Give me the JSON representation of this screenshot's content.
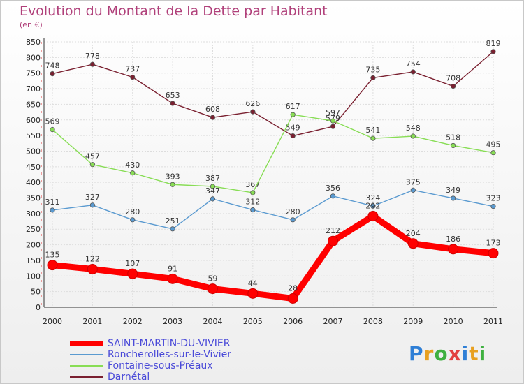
{
  "title": "Evolution du Montant de la Dette par Habitant",
  "subtitle": "(en €)",
  "logo_text": "Proxiti",
  "chart_data": {
    "type": "line",
    "title": "Evolution du Montant de la Dette par Habitant",
    "ylabel": "(en €)",
    "x": [
      "2000",
      "2001",
      "2002",
      "2003",
      "2004",
      "2005",
      "2006",
      "2007",
      "2008",
      "2009",
      "2010",
      "2011"
    ],
    "ylim": [
      0,
      850
    ],
    "yticks": [
      0,
      50,
      100,
      150,
      200,
      250,
      300,
      350,
      400,
      450,
      500,
      550,
      600,
      650,
      700,
      750,
      800,
      850
    ],
    "grid": true,
    "legend": "bottom-left",
    "series": [
      {
        "name": "SAINT-MARTIN-DU-VIVIER",
        "color": "#ff0000",
        "values": [
          135,
          122,
          107,
          91,
          59,
          44,
          28,
          212,
          292,
          204,
          186,
          173
        ]
      },
      {
        "name": "Roncherolles-sur-le-Vivier",
        "color": "#5a9ad0",
        "values": [
          311,
          327,
          280,
          251,
          347,
          312,
          280,
          356,
          324,
          375,
          349,
          323
        ]
      },
      {
        "name": "Fontaine-sous-Préaux",
        "color": "#88dd55",
        "values": [
          569,
          457,
          430,
          393,
          387,
          367,
          617,
          597,
          541,
          548,
          518,
          495
        ]
      },
      {
        "name": "Darnétal",
        "color": "#7a2030",
        "values": [
          748,
          778,
          737,
          653,
          608,
          626,
          549,
          579,
          735,
          754,
          708,
          819
        ]
      }
    ]
  }
}
